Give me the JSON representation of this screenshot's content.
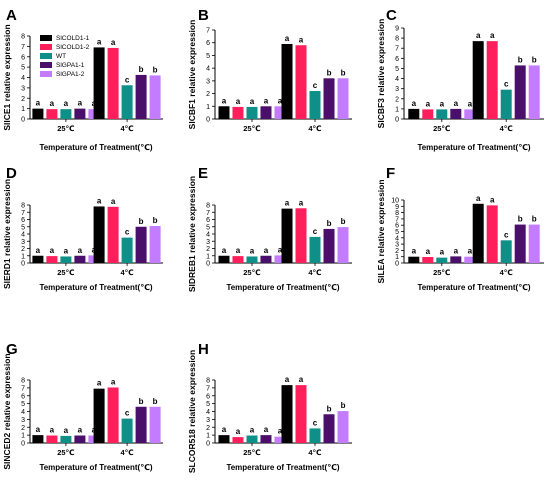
{
  "figure": {
    "x_title": "Temperature of Treatment(℃)",
    "legend": [
      {
        "name": "SlCOLD1-1",
        "color": "#000000"
      },
      {
        "name": "SlCOLD1-2",
        "color": "#ff1f5b"
      },
      {
        "name": "WT",
        "color": "#0e8f87"
      },
      {
        "name": "SlGPA1-1",
        "color": "#4a0f6b"
      },
      {
        "name": "SlGPA1-2",
        "color": "#c37bff"
      }
    ]
  },
  "chart_data": [
    {
      "panel": "A",
      "type": "bar",
      "categories": [
        "25℃",
        "4℃"
      ],
      "ylabel": "SlICE1 relative expression",
      "xlabel": "Temperature of Treatment(℃)",
      "ylim": [
        0,
        8
      ],
      "yticks": [
        0,
        1,
        2,
        3,
        4,
        5,
        6,
        7,
        8
      ],
      "series": [
        {
          "name": "SlCOLD1-1",
          "values": [
            1.0,
            6.9
          ],
          "letters": [
            "a",
            "a"
          ]
        },
        {
          "name": "SlCOLD1-2",
          "values": [
            0.95,
            6.85
          ],
          "letters": [
            "a",
            "a"
          ]
        },
        {
          "name": "WT",
          "values": [
            0.95,
            3.25
          ],
          "letters": [
            "a",
            "c"
          ]
        },
        {
          "name": "SlGPA1-1",
          "values": [
            1.0,
            4.25
          ],
          "letters": [
            "a",
            "b"
          ]
        },
        {
          "name": "SlGPA1-2",
          "values": [
            0.95,
            4.2
          ],
          "letters": [
            "a",
            "b"
          ]
        }
      ]
    },
    {
      "panel": "B",
      "type": "bar",
      "categories": [
        "25℃",
        "4℃"
      ],
      "ylabel": "SlCBF1 relative expression",
      "xlabel": "",
      "ylim": [
        0,
        7
      ],
      "yticks": [
        0,
        1,
        2,
        3,
        4,
        5,
        6,
        7
      ],
      "series": [
        {
          "name": "SlCOLD1-1",
          "values": [
            1.0,
            5.9
          ],
          "letters": [
            "a",
            "a"
          ]
        },
        {
          "name": "SlCOLD1-2",
          "values": [
            0.95,
            5.8
          ],
          "letters": [
            "a",
            "a"
          ]
        },
        {
          "name": "WT",
          "values": [
            0.95,
            2.2
          ],
          "letters": [
            "a",
            "c"
          ]
        },
        {
          "name": "SlGPA1-1",
          "values": [
            1.0,
            3.2
          ],
          "letters": [
            "a",
            "b"
          ]
        },
        {
          "name": "SlGPA1-2",
          "values": [
            1.0,
            3.2
          ],
          "letters": [
            "a",
            "b"
          ]
        }
      ]
    },
    {
      "panel": "C",
      "type": "bar",
      "categories": [
        "25℃",
        "4℃"
      ],
      "ylabel": "SlCBF3 relative expression",
      "xlabel": "Temperature of Treatment(℃)",
      "ylim": [
        0,
        9
      ],
      "yticks": [
        0,
        1,
        2,
        3,
        4,
        5,
        6,
        7,
        8,
        9
      ],
      "series": [
        {
          "name": "SlCOLD1-1",
          "values": [
            1.0,
            7.7
          ],
          "letters": [
            "a",
            "a"
          ]
        },
        {
          "name": "SlCOLD1-2",
          "values": [
            0.95,
            7.7
          ],
          "letters": [
            "a",
            "a"
          ]
        },
        {
          "name": "WT",
          "values": [
            0.95,
            2.9
          ],
          "letters": [
            "a",
            "c"
          ]
        },
        {
          "name": "SlGPA1-1",
          "values": [
            1.0,
            5.3
          ],
          "letters": [
            "a",
            "b"
          ]
        },
        {
          "name": "SlGPA1-2",
          "values": [
            0.95,
            5.3
          ],
          "letters": [
            "a",
            "b"
          ]
        }
      ]
    },
    {
      "panel": "D",
      "type": "bar",
      "categories": [
        "25℃",
        "4℃"
      ],
      "ylabel": "SlERD1 relative expression",
      "xlabel": "Temperature of Treatment(℃)",
      "ylim": [
        0,
        8
      ],
      "yticks": [
        0,
        1,
        2,
        3,
        4,
        5,
        6,
        7,
        8
      ],
      "series": [
        {
          "name": "SlCOLD1-1",
          "values": [
            1.0,
            7.8
          ],
          "letters": [
            "a",
            "a"
          ]
        },
        {
          "name": "SlCOLD1-2",
          "values": [
            0.95,
            7.75
          ],
          "letters": [
            "a",
            "a"
          ]
        },
        {
          "name": "WT",
          "values": [
            0.9,
            3.5
          ],
          "letters": [
            "a",
            "c"
          ]
        },
        {
          "name": "SlGPA1-1",
          "values": [
            1.0,
            5.0
          ],
          "letters": [
            "a",
            "b"
          ]
        },
        {
          "name": "SlGPA1-2",
          "values": [
            1.05,
            5.1
          ],
          "letters": [
            "a",
            "b"
          ]
        }
      ]
    },
    {
      "panel": "E",
      "type": "bar",
      "categories": [
        "25℃",
        "4℃"
      ],
      "ylabel": "SlDREB1 relative expression",
      "xlabel": "Temperature of Treatment(℃)",
      "ylim": [
        0,
        8
      ],
      "yticks": [
        0,
        1,
        2,
        3,
        4,
        5,
        6,
        7,
        8
      ],
      "series": [
        {
          "name": "SlCOLD1-1",
          "values": [
            1.0,
            7.5
          ],
          "letters": [
            "a",
            "a"
          ]
        },
        {
          "name": "SlCOLD1-2",
          "values": [
            0.95,
            7.55
          ],
          "letters": [
            "a",
            "a"
          ]
        },
        {
          "name": "WT",
          "values": [
            0.9,
            3.6
          ],
          "letters": [
            "a",
            "c"
          ]
        },
        {
          "name": "SlGPA1-1",
          "values": [
            1.0,
            4.7
          ],
          "letters": [
            "a",
            "b"
          ]
        },
        {
          "name": "SlGPA1-2",
          "values": [
            1.05,
            4.95
          ],
          "letters": [
            "a",
            "b"
          ]
        }
      ]
    },
    {
      "panel": "F",
      "type": "bar",
      "categories": [
        "25℃",
        "4℃"
      ],
      "ylabel": "SlLEA relative expression",
      "xlabel": "Temperature of Treatment(℃)",
      "ylim": [
        0,
        10
      ],
      "yticks": [
        0,
        1,
        2,
        3,
        4,
        5,
        6,
        7,
        8,
        9,
        10
      ],
      "series": [
        {
          "name": "SlCOLD1-1",
          "values": [
            1.0,
            9.4
          ],
          "letters": [
            "a",
            "a"
          ]
        },
        {
          "name": "SlCOLD1-2",
          "values": [
            0.95,
            9.15
          ],
          "letters": [
            "a",
            "a"
          ]
        },
        {
          "name": "WT",
          "values": [
            0.85,
            3.6
          ],
          "letters": [
            "a",
            "c"
          ]
        },
        {
          "name": "SlGPA1-1",
          "values": [
            1.05,
            6.1
          ],
          "letters": [
            "a",
            "b"
          ]
        },
        {
          "name": "SlGPA1-2",
          "values": [
            1.0,
            6.1
          ],
          "letters": [
            "a",
            "b"
          ]
        }
      ]
    },
    {
      "panel": "G",
      "type": "bar",
      "categories": [
        "25℃",
        "4℃"
      ],
      "ylabel": "SlNCED2 relative expression",
      "xlabel": "Temperature of Treatment(℃)",
      "ylim": [
        0,
        8
      ],
      "yticks": [
        0,
        1,
        2,
        3,
        4,
        5,
        6,
        7,
        8
      ],
      "series": [
        {
          "name": "SlCOLD1-1",
          "values": [
            1.0,
            6.9
          ],
          "letters": [
            "a",
            "a"
          ]
        },
        {
          "name": "SlCOLD1-2",
          "values": [
            0.95,
            7.05
          ],
          "letters": [
            "a",
            "a"
          ]
        },
        {
          "name": "WT",
          "values": [
            0.9,
            3.1
          ],
          "letters": [
            "a",
            "c"
          ]
        },
        {
          "name": "SlGPA1-1",
          "values": [
            0.95,
            4.6
          ],
          "letters": [
            "a",
            "b"
          ]
        },
        {
          "name": "SlGPA1-2",
          "values": [
            0.95,
            4.6
          ],
          "letters": [
            "a",
            "b"
          ]
        }
      ]
    },
    {
      "panel": "H",
      "type": "bar",
      "categories": [
        "25℃",
        "4℃"
      ],
      "ylabel": "SLCOR518 relative expression",
      "xlabel": "Temperature of Treatment(℃)",
      "ylim": [
        0,
        8
      ],
      "yticks": [
        0,
        1,
        2,
        3,
        4,
        5,
        6,
        7,
        8
      ],
      "series": [
        {
          "name": "SlCOLD1-1",
          "values": [
            1.0,
            7.35
          ],
          "letters": [
            "a",
            "a"
          ]
        },
        {
          "name": "SlCOLD1-2",
          "values": [
            0.75,
            7.35
          ],
          "letters": [
            "a",
            "a"
          ]
        },
        {
          "name": "WT",
          "values": [
            0.95,
            1.85
          ],
          "letters": [
            "a",
            "c"
          ]
        },
        {
          "name": "SlGPA1-1",
          "values": [
            1.0,
            3.65
          ],
          "letters": [
            "a",
            "b"
          ]
        },
        {
          "name": "SlGPA1-2",
          "values": [
            0.8,
            4.05
          ],
          "letters": [
            "a",
            "b"
          ]
        }
      ]
    }
  ]
}
